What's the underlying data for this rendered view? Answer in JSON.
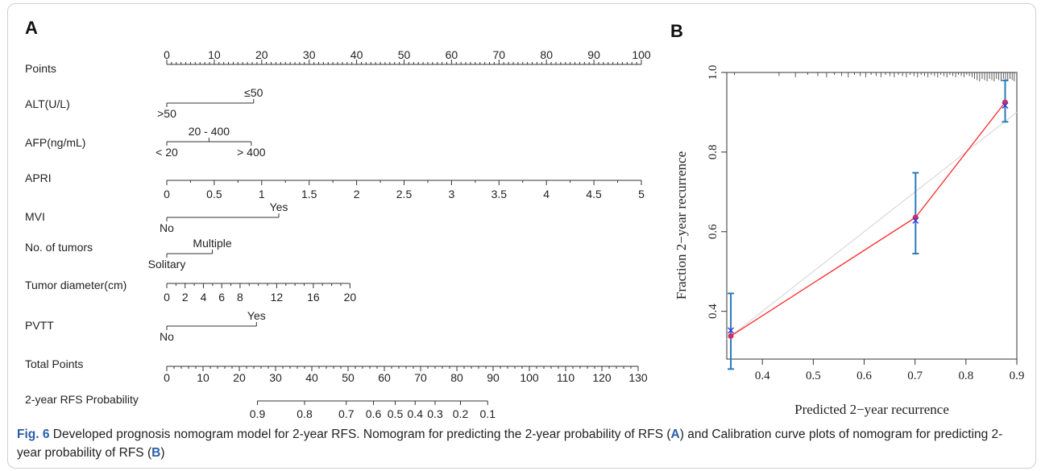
{
  "caption": {
    "label": "Fig. 6",
    "part1": " Developed prognosis nomogram model for 2-year RFS. Nomogram for predicting the 2-year probability of RFS (",
    "ref_a": "A",
    "part2": ") and Calibration curve plots of nomogram for predicting 2-year probability of RFS (",
    "ref_b": "B",
    "part3": ")"
  },
  "chart_data": [
    {
      "type": "nomogram",
      "panel_label": "A",
      "points_scale": {
        "label": "Points",
        "min": 0,
        "max": 100,
        "tick_labels": [
          0,
          10,
          20,
          30,
          40,
          50,
          60,
          70,
          80,
          90,
          100
        ]
      },
      "variables": [
        {
          "name": "ALT(U/L)",
          "levels": [
            {
              "label": ">50",
              "points": 0,
              "position": "below"
            },
            {
              "label": "≤50",
              "points": 18.3,
              "position": "above"
            }
          ]
        },
        {
          "name": "AFP(ng/mL)",
          "levels": [
            {
              "label": "< 20",
              "points": 0,
              "position": "below"
            },
            {
              "label": "20 - 400",
              "points": 8.9,
              "position": "above"
            },
            {
              "label": "> 400",
              "points": 17.8,
              "position": "below"
            }
          ]
        },
        {
          "name": "APRI",
          "continuous": true,
          "min": 0,
          "max": 5,
          "points_max": 100,
          "tick_labels": [
            "0",
            "0.5",
            "1",
            "1.5",
            "2",
            "2.5",
            "3",
            "3.5",
            "4",
            "4.5",
            "5"
          ]
        },
        {
          "name": "MVI",
          "levels": [
            {
              "label": "No",
              "points": 0,
              "position": "below"
            },
            {
              "label": "Yes",
              "points": 23.6,
              "position": "above"
            }
          ]
        },
        {
          "name": "No. of tumors",
          "levels": [
            {
              "label": "Solitary",
              "points": 0,
              "position": "below"
            },
            {
              "label": "Multiple",
              "points": 9.6,
              "position": "above"
            }
          ]
        },
        {
          "name": "Tumor diameter(cm)",
          "continuous": true,
          "min": 0,
          "max": 20,
          "points_max": 38.6,
          "tick_labels": [
            "0",
            "2",
            "4",
            "6",
            "8",
            "12",
            "16",
            "20"
          ],
          "tick_values": [
            0,
            2,
            4,
            6,
            8,
            12,
            16,
            20
          ],
          "minor_values": [
            1,
            3,
            5,
            7,
            9,
            10,
            11,
            13,
            14,
            15,
            17,
            18,
            19
          ]
        },
        {
          "name": "PVTT",
          "levels": [
            {
              "label": "No",
              "points": 0,
              "position": "below"
            },
            {
              "label": "Yes",
              "points": 18.9,
              "position": "above"
            }
          ]
        }
      ],
      "total_points": {
        "label": "Total Points",
        "min": 0,
        "max": 130,
        "tick_labels": [
          0,
          10,
          20,
          30,
          40,
          50,
          60,
          70,
          80,
          90,
          100,
          110,
          120,
          130
        ]
      },
      "probability_scale": {
        "label": "2-year RFS Probability",
        "ticks": [
          {
            "label": "0.9",
            "total_points": 25
          },
          {
            "label": "0.8",
            "total_points": 38
          },
          {
            "label": "0.7",
            "total_points": 49.5
          },
          {
            "label": "0.6",
            "total_points": 57
          },
          {
            "label": "0.5",
            "total_points": 63
          },
          {
            "label": "0.4",
            "total_points": 68.5
          },
          {
            "label": "0.3",
            "total_points": 74
          },
          {
            "label": "0.2",
            "total_points": 81
          },
          {
            "label": "0.1",
            "total_points": 88.5
          }
        ]
      }
    },
    {
      "type": "line",
      "panel_label": "B",
      "xlabel": "Predicted 2−year recurrence",
      "ylabel": "Fraction 2−year recurrence",
      "xlim": [
        0.33,
        0.9
      ],
      "ylim": [
        0.28,
        1.0
      ],
      "x_ticks": [
        0.4,
        0.5,
        0.6,
        0.7,
        0.8,
        0.9
      ],
      "y_ticks": [
        0.4,
        0.6,
        0.8,
        1.0
      ],
      "colors": {
        "calibration": "#ff2a2a",
        "ideal": "#d9d9d9",
        "errorbar": "#2b7bba",
        "observed_marker": "#cc2f66",
        "corrected_marker": "#2b2bd9"
      },
      "series": [
        {
          "role": "ideal-reference",
          "x": [
            0.33,
            0.9
          ],
          "y": [
            0.33,
            0.9
          ]
        },
        {
          "role": "calibration",
          "x": [
            0.338,
            0.701,
            0.877
          ],
          "y": [
            0.338,
            0.636,
            0.925
          ]
        },
        {
          "role": "bias-corrected",
          "x": [
            0.338,
            0.701,
            0.877
          ],
          "y": [
            0.352,
            0.628,
            0.917
          ]
        }
      ],
      "error_bars": [
        {
          "x": 0.338,
          "low": 0.255,
          "high": 0.445
        },
        {
          "x": 0.701,
          "low": 0.545,
          "high": 0.748
        },
        {
          "x": 0.877,
          "low": 0.876,
          "high": 0.98
        }
      ],
      "rug": "top"
    }
  ]
}
